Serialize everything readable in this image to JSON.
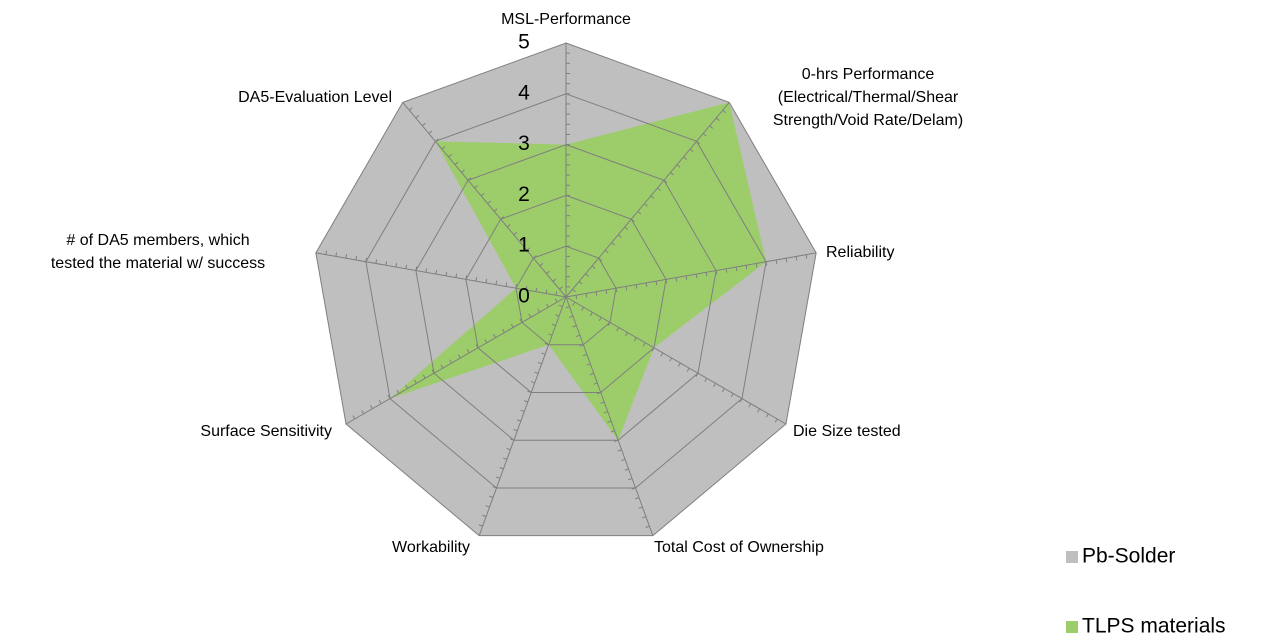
{
  "chart_data": {
    "type": "radar",
    "categories": [
      [
        "MSL-Performance"
      ],
      [
        "0-hrs Performance",
        "(Electrical/Thermal/Shear",
        "Strength/Void Rate/Delam)"
      ],
      [
        "Reliability"
      ],
      [
        "Die Size tested"
      ],
      [
        "Total Cost of Ownership"
      ],
      [
        "Workability"
      ],
      [
        "Surface Sensitivity"
      ],
      [
        "# of DA5 members, which",
        "tested the material w/ success"
      ],
      [
        "DA5-Evaluation Level"
      ]
    ],
    "series": [
      {
        "name": "Pb-Solder",
        "color": "#bfbfbf",
        "values": [
          5,
          5,
          5,
          5,
          5,
          5,
          5,
          5,
          5
        ]
      },
      {
        "name": "TLPS materials",
        "color": "#9dcd6a",
        "values": [
          3,
          5,
          4,
          2,
          3,
          1,
          4,
          1,
          4
        ]
      }
    ],
    "rlim": [
      0,
      5
    ],
    "rticks": [
      0,
      1,
      2,
      3,
      4,
      5
    ],
    "grid": true,
    "legend": "bottom-right"
  }
}
